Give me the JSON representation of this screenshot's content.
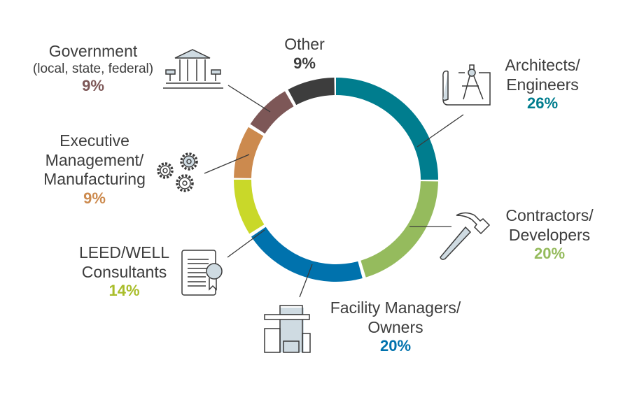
{
  "chart_data": {
    "type": "pie",
    "variant": "donut",
    "title": "",
    "slices": [
      {
        "label_lines": [
          "Architects/",
          "Engineers"
        ],
        "value": 26,
        "value_label": "26%",
        "color": "#007d8e",
        "icon": "blueprint-compass-icon",
        "angle_start": 0,
        "angle_end": 90
      },
      {
        "label_lines": [
          "Contractors/",
          "Developers"
        ],
        "value": 20,
        "value_label": "20%",
        "color": "#95bb5d",
        "icon": "hammer-icon",
        "angle_start": 91,
        "angle_end": 163
      },
      {
        "label_lines": [
          "Facility Managers/",
          "Owners"
        ],
        "value": 20,
        "value_label": "20%",
        "color": "#0072ad",
        "icon": "building-icon",
        "angle_start": 165,
        "angle_end": 236
      },
      {
        "label_lines": [
          "LEED/WELL",
          "Consultants"
        ],
        "value": 14,
        "value_label": "14%",
        "color": "#c9d829",
        "icon": "certificate-icon",
        "angle_start": 238,
        "angle_end": 270
      },
      {
        "label_lines": [
          "Executive",
          "Management/",
          "Manufacturing"
        ],
        "value": 9,
        "value_label": "9%",
        "color": "#cc8a4e",
        "icon": "gears-icon",
        "angle_start": 271,
        "angle_end": 301
      },
      {
        "label_lines": [
          "Government"
        ],
        "sublabel": "(local, state, federal)",
        "value": 9,
        "value_label": "9%",
        "color": "#7d5757",
        "icon": "government-building-icon",
        "angle_start": 303,
        "angle_end": 330
      },
      {
        "label_lines": [
          "Other"
        ],
        "value": 9,
        "value_label": "9%",
        "color": "#3d3d3d",
        "icon": "",
        "angle_start": 332,
        "angle_end": 359
      }
    ]
  }
}
